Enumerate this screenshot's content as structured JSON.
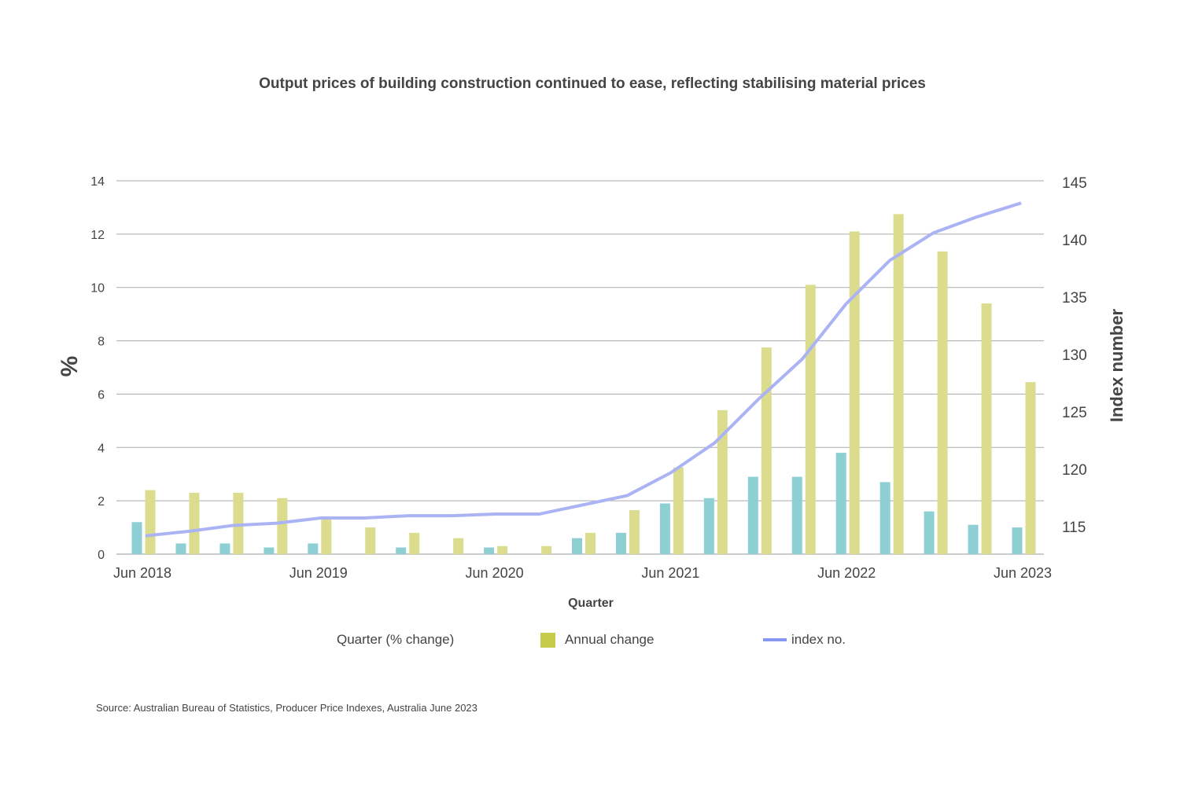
{
  "chart_data": {
    "type": "bar+line",
    "title": "Output prices of building construction continued to ease, reflecting stabilising material prices",
    "xlabel": "Quarter",
    "ylabel": "%",
    "y2label": "Index number",
    "ylim": [
      0,
      14
    ],
    "y2lim": [
      112.5,
      145
    ],
    "yticks": [
      "0",
      "2",
      "4",
      "6",
      "8",
      "10",
      "12",
      "14"
    ],
    "y2ticks": [
      "115",
      "120",
      "125",
      "130",
      "135",
      "140",
      "145"
    ],
    "xtick_labels": [
      "Jun 2018",
      "Jun 2019",
      "Jun 2020",
      "Jun 2021",
      "Jun 2022",
      "Jun 2023"
    ],
    "grid": true,
    "legend_position": "bottom",
    "series": [
      {
        "name": "Quarter (% change)",
        "kind": "bar",
        "axis": "left",
        "color": "#8ecfd4",
        "values": [
          1.2,
          0.4,
          0.4,
          0.25,
          0.4,
          0,
          0.25,
          0,
          0.25,
          0,
          0.6,
          0.8,
          1.9,
          2.1,
          2.9,
          2.9,
          3.8,
          2.7,
          1.6,
          1.1,
          1.0
        ]
      },
      {
        "name": "Annual change",
        "kind": "bar",
        "axis": "left",
        "color": "#dcdc8f",
        "legend_color": "#c5cc4a",
        "values": [
          2.4,
          2.3,
          2.3,
          2.1,
          1.4,
          1.0,
          0.8,
          0.6,
          0.3,
          0.3,
          0.8,
          1.65,
          3.25,
          5.4,
          7.75,
          10.1,
          12.1,
          12.75,
          11.35,
          9.4,
          6.45
        ]
      },
      {
        "name": "index no.",
        "kind": "line",
        "axis": "right",
        "color": "#aab4f5",
        "legend_color": "#8796ee",
        "values": [
          114.2,
          114.6,
          115.1,
          115.3,
          115.75,
          115.75,
          115.95,
          115.95,
          116.1,
          116.1,
          116.9,
          117.7,
          119.7,
          122.3,
          126.1,
          129.6,
          134.4,
          138.2,
          140.6,
          142.0,
          143.2
        ]
      }
    ]
  },
  "source": "Source: Australian Bureau of Statistics, Producer Price Indexes, Australia June 2023"
}
